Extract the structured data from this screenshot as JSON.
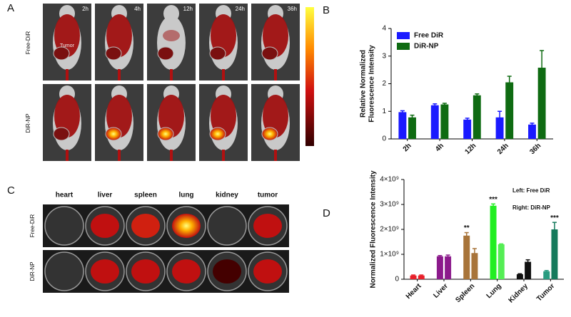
{
  "panel_a": {
    "label": "A",
    "time_points": [
      "2h",
      "4h",
      "12h",
      "24h",
      "36h"
    ],
    "rows": [
      "Free-DiR",
      "DiR-NP"
    ],
    "tumor_label": "Tumor"
  },
  "panel_c": {
    "label": "C",
    "organs": [
      "heart",
      "liver",
      "spleen",
      "lung",
      "kidney",
      "tumor"
    ],
    "rows": [
      "Free-DiR",
      "DiR-NP"
    ]
  },
  "chart_data": [
    {
      "type": "bar",
      "panel": "B",
      "ylabel": [
        "Relative Normalized",
        "Fluorescence Intensity"
      ],
      "categories": [
        "2h",
        "4h",
        "12h",
        "24h",
        "36h"
      ],
      "series": [
        {
          "name": "Free DiR",
          "color": "#1a1aff",
          "values": [
            0.97,
            1.22,
            0.7,
            0.78,
            0.52
          ],
          "errors": [
            0.05,
            0.05,
            0.05,
            0.22,
            0.05
          ]
        },
        {
          "name": "DiR-NP",
          "color": "#0f6b12",
          "values": [
            0.78,
            1.25,
            1.58,
            2.05,
            2.58
          ],
          "errors": [
            0.08,
            0.04,
            0.05,
            0.22,
            0.62
          ]
        }
      ],
      "ylim": [
        0,
        4
      ],
      "yticks": [
        0,
        1,
        2,
        3,
        4
      ],
      "legend": "upper left"
    },
    {
      "type": "bar",
      "panel": "D",
      "ylabel": [
        "Normalized Fluorescence Intensity"
      ],
      "categories": [
        "Heart",
        "Liver",
        "Spleen",
        "Lung",
        "Kidney",
        "Tumor"
      ],
      "series": [
        {
          "name": "Left: Free DiR",
          "colors": [
            "#e8202a",
            "#8b1a8b",
            "#a8743a",
            "#22ee22",
            "#111111",
            "#2a9c80"
          ],
          "values": [
            150000000,
            920000000,
            1750000000,
            2950000000,
            200000000,
            320000000
          ],
          "errors": [
            20000000,
            30000000,
            120000000,
            70000000,
            20000000,
            30000000
          ],
          "annotations": [
            null,
            null,
            "**",
            "***",
            null,
            null
          ]
        },
        {
          "name": "Right: DiR-NP",
          "colors": [
            "#e8202a",
            "#8b1a8b",
            "#a8743a",
            "#55ee55",
            "#111111",
            "#157a5c"
          ],
          "values": [
            150000000,
            920000000,
            1050000000,
            1400000000,
            700000000,
            2000000000
          ],
          "errors": [
            20000000,
            50000000,
            180000000,
            20000000,
            80000000,
            280000000
          ],
          "annotations": [
            null,
            null,
            null,
            null,
            null,
            "***"
          ]
        }
      ],
      "ylim": [
        0,
        4000000000
      ],
      "yticks": [
        0,
        {
          "value": 1000000000,
          "label": "1×10⁹"
        },
        {
          "value": 2000000000,
          "label": "2×10⁹"
        },
        {
          "value": 3000000000,
          "label": "3×10⁹"
        },
        {
          "value": 4000000000,
          "label": "4×10⁹"
        }
      ],
      "legend": "upper right"
    }
  ]
}
